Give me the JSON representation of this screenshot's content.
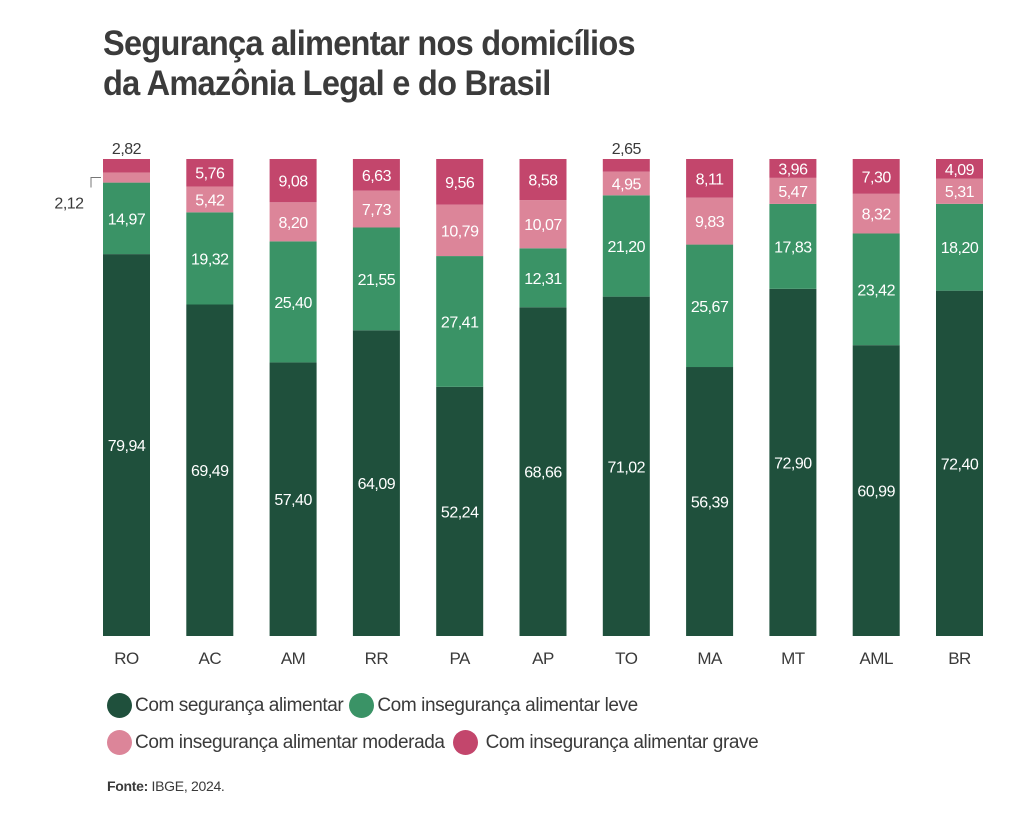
{
  "chart_data": {
    "type": "bar",
    "stacked": true,
    "title": "Segurança alimentar nos domicílios da Amazônia Legal e do Brasil",
    "title_lines": [
      "Segurança alimentar nos domicílios",
      "da Amazônia Legal e do Brasil"
    ],
    "xlabel": "",
    "ylabel": "",
    "ylim": [
      0,
      100
    ],
    "grid": false,
    "categories": [
      "RO",
      "AC",
      "AM",
      "RR",
      "PA",
      "AP",
      "TO",
      "MA",
      "MT",
      "AML",
      "BR"
    ],
    "series": [
      {
        "name": "Com segurança alimentar",
        "color": "#1f503c",
        "values": [
          79.94,
          69.49,
          57.4,
          64.09,
          52.24,
          68.66,
          71.02,
          56.39,
          72.9,
          60.99,
          72.4
        ],
        "labels": [
          "79,94",
          "69,49",
          "57,40",
          "64,09",
          "52,24",
          "68,66",
          "71,02",
          "56,39",
          "72,90",
          "60,99",
          "72,40"
        ]
      },
      {
        "name": "Com insegurança alimentar leve",
        "color": "#3a9366",
        "values": [
          14.97,
          19.32,
          25.4,
          21.55,
          27.41,
          12.31,
          21.2,
          25.67,
          17.83,
          23.42,
          18.2
        ],
        "labels": [
          "14,97",
          "19,32",
          "25,40",
          "21,55",
          "27,41",
          "12,31",
          "21,20",
          "25,67",
          "17,83",
          "23,42",
          "18,20"
        ]
      },
      {
        "name": "Com insegurança alimentar moderada",
        "color": "#dc8599",
        "values": [
          2.12,
          5.42,
          8.2,
          7.73,
          10.79,
          10.07,
          4.95,
          9.83,
          5.47,
          8.32,
          5.31
        ],
        "labels": [
          "2,12",
          "5,42",
          "8,20",
          "7,73",
          "10,79",
          "10,07",
          "4,95",
          "9,83",
          "5,47",
          "8,32",
          "5,31"
        ]
      },
      {
        "name": "Com insegurança alimentar grave",
        "color": "#c3466c",
        "values": [
          2.82,
          5.76,
          9.08,
          6.63,
          9.56,
          8.58,
          2.65,
          8.11,
          3.96,
          7.3,
          4.09
        ],
        "labels": [
          "2,82",
          "5,76",
          "9,08",
          "6,63",
          "9,56",
          "8,58",
          "2,65",
          "8,11",
          "3,96",
          "7,30",
          "4,09"
        ]
      }
    ],
    "legend": {
      "placement": "bottom-left"
    },
    "annotations": [
      {
        "category": "RO",
        "series": "Com insegurança alimentar grave",
        "text": "2,82",
        "position": "above-bar"
      },
      {
        "category": "RO",
        "series": "Com insegurança alimentar moderada",
        "text": "2,12",
        "position": "left-callout"
      },
      {
        "category": "TO",
        "series": "Com insegurança alimentar grave",
        "text": "2,65",
        "position": "above-bar"
      }
    ]
  },
  "source": {
    "label": "Fonte:",
    "text": " IBGE, 2024."
  }
}
